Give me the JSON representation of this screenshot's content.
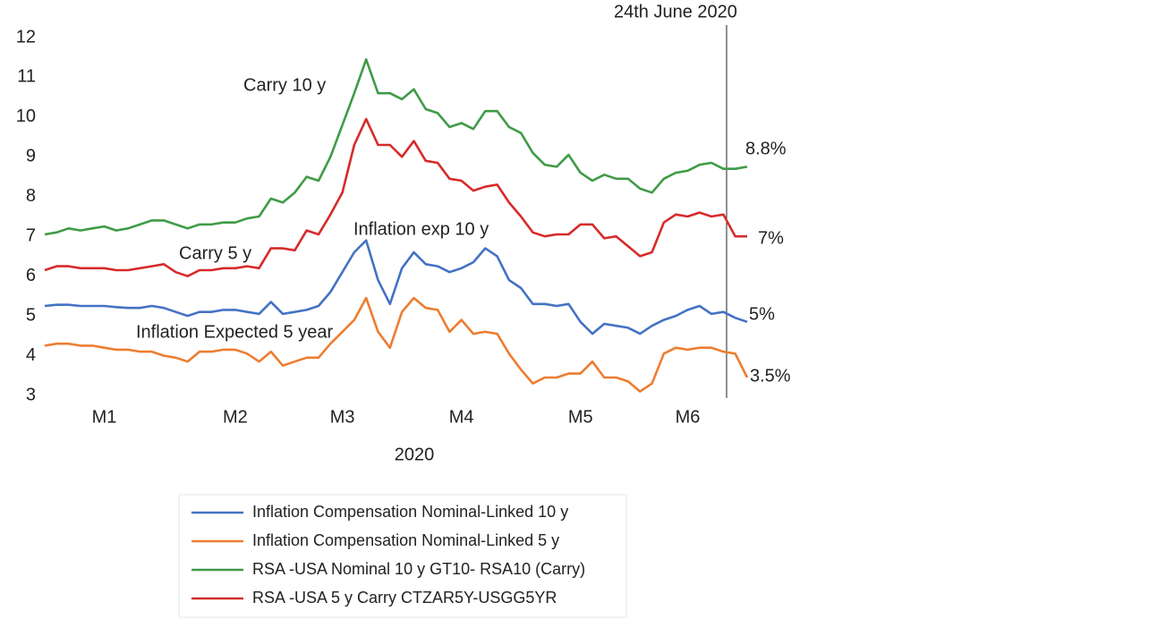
{
  "chart_data": {
    "type": "line",
    "x_label": "2020",
    "categories": [
      null,
      null,
      null,
      null,
      null,
      "M1",
      null,
      null,
      null,
      null,
      null,
      null,
      null,
      null,
      null,
      null,
      "M2",
      null,
      null,
      null,
      null,
      null,
      null,
      null,
      null,
      "M3",
      null,
      null,
      null,
      null,
      null,
      null,
      null,
      null,
      null,
      "M4",
      null,
      null,
      null,
      null,
      null,
      null,
      null,
      null,
      null,
      "M5",
      null,
      null,
      null,
      null,
      null,
      null,
      null,
      null,
      "M6",
      null,
      null,
      null,
      null,
      null
    ],
    "ylim": [
      3,
      12
    ],
    "yticks": [
      3,
      4,
      5,
      6,
      7,
      8,
      9,
      10,
      11,
      12
    ],
    "grid": false,
    "series": [
      {
        "name": "Inflation Compensation Nominal-Linked 10 y",
        "color": "#4472c4",
        "values": [
          5.25,
          5.28,
          5.28,
          5.25,
          5.25,
          5.25,
          5.22,
          5.2,
          5.2,
          5.25,
          5.2,
          5.1,
          5.0,
          5.1,
          5.1,
          5.15,
          5.15,
          5.1,
          5.05,
          5.35,
          5.05,
          5.1,
          5.15,
          5.25,
          5.6,
          6.1,
          6.6,
          6.9,
          5.9,
          5.3,
          6.2,
          6.6,
          6.3,
          6.25,
          6.1,
          6.2,
          6.35,
          6.7,
          6.5,
          5.9,
          5.7,
          5.3,
          5.3,
          5.25,
          5.3,
          4.85,
          4.55,
          4.8,
          4.75,
          4.7,
          4.55,
          4.75,
          4.9,
          5.0,
          5.15,
          5.25,
          5.05,
          5.1,
          4.95,
          4.85
        ]
      },
      {
        "name": "Inflation Compensation Nominal-Linked 5 y",
        "color": "#ed7d31",
        "values": [
          4.25,
          4.3,
          4.3,
          4.25,
          4.25,
          4.2,
          4.15,
          4.15,
          4.1,
          4.1,
          4.0,
          3.95,
          3.85,
          4.1,
          4.1,
          4.15,
          4.15,
          4.05,
          3.85,
          4.1,
          3.75,
          3.85,
          3.95,
          3.95,
          4.3,
          4.6,
          4.9,
          5.45,
          4.6,
          4.2,
          5.1,
          5.45,
          5.2,
          5.15,
          4.6,
          4.9,
          4.55,
          4.6,
          4.55,
          4.05,
          3.65,
          3.3,
          3.45,
          3.45,
          3.55,
          3.55,
          3.85,
          3.45,
          3.45,
          3.35,
          3.1,
          3.3,
          4.05,
          4.2,
          4.15,
          4.2,
          4.2,
          4.1,
          4.05,
          3.45
        ]
      },
      {
        "name": "RSA -USA Nominal 10 y GT10- RSA10 (Carry)",
        "color": "#3f9b47",
        "values": [
          7.05,
          7.1,
          7.2,
          7.15,
          7.2,
          7.25,
          7.15,
          7.2,
          7.3,
          7.4,
          7.4,
          7.3,
          7.2,
          7.3,
          7.3,
          7.35,
          7.35,
          7.45,
          7.5,
          7.95,
          7.85,
          8.1,
          8.5,
          8.4,
          9.0,
          9.8,
          10.6,
          11.45,
          10.6,
          10.6,
          10.45,
          10.7,
          10.2,
          10.1,
          9.75,
          9.85,
          9.7,
          10.15,
          10.15,
          9.75,
          9.6,
          9.1,
          8.8,
          8.75,
          9.05,
          8.6,
          8.4,
          8.55,
          8.45,
          8.45,
          8.2,
          8.1,
          8.45,
          8.6,
          8.65,
          8.8,
          8.85,
          8.7,
          8.7,
          8.75
        ]
      },
      {
        "name": "RSA -USA 5 y Carry CTZAR5Y-USGG5YR",
        "color": "#d62b2b",
        "values": [
          6.15,
          6.25,
          6.25,
          6.2,
          6.2,
          6.2,
          6.15,
          6.15,
          6.2,
          6.25,
          6.3,
          6.1,
          6.0,
          6.15,
          6.15,
          6.2,
          6.2,
          6.25,
          6.2,
          6.7,
          6.7,
          6.65,
          7.15,
          7.05,
          7.55,
          8.1,
          9.3,
          9.95,
          9.3,
          9.3,
          9.0,
          9.4,
          8.9,
          8.85,
          8.45,
          8.4,
          8.15,
          8.25,
          8.3,
          7.85,
          7.5,
          7.1,
          7.0,
          7.05,
          7.05,
          7.3,
          7.3,
          6.95,
          7.0,
          6.75,
          6.5,
          6.6,
          7.35,
          7.55,
          7.5,
          7.6,
          7.5,
          7.55,
          7.0,
          7.0
        ]
      }
    ],
    "annotations": [
      {
        "text": "Carry 10 y"
      },
      {
        "text": "Carry 5 y"
      },
      {
        "text": "Inflation exp 10 y"
      },
      {
        "text": "Inflation Expected 5 year"
      },
      {
        "text": "24th June 2020"
      },
      {
        "text": "8.8%"
      },
      {
        "text": "7%"
      },
      {
        "text": "5%"
      },
      {
        "text": "3.5%"
      }
    ]
  }
}
